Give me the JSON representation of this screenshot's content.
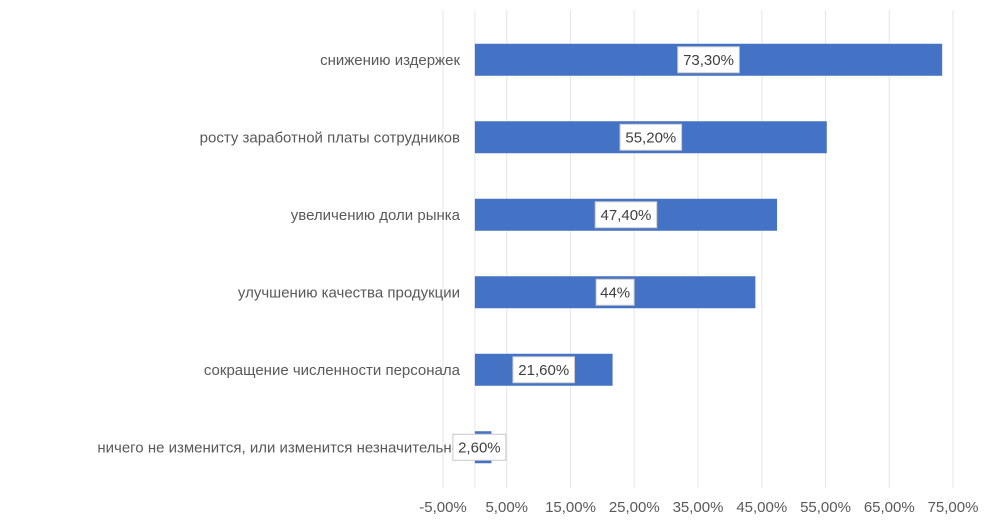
{
  "chart_data": {
    "type": "bar",
    "orientation": "horizontal",
    "categories": [
      "снижению издержек",
      "росту заработной платы сотрудников",
      "увеличению доли рынка",
      "улучшению качества продукции",
      "сокращение численности персонала",
      "ничего не изменится, или изменится незначительно"
    ],
    "values": [
      73.3,
      55.2,
      47.4,
      44,
      21.6,
      2.6
    ],
    "data_labels": [
      "73,30%",
      "55,20%",
      "47,40%",
      "44%",
      "21,60%",
      "2,60%"
    ],
    "x_ticks": [
      -5,
      5,
      15,
      25,
      35,
      45,
      55,
      65,
      75
    ],
    "x_tick_labels": [
      "-5,00%",
      "5,00%",
      "15,00%",
      "25,00%",
      "35,00%",
      "45,00%",
      "55,00%",
      "65,00%",
      "75,00%"
    ],
    "xlim": [
      -5,
      78
    ],
    "title": "",
    "xlabel": "",
    "ylabel": "",
    "grid": "vertical",
    "legend": "none",
    "bar_color": "#4472c4",
    "grid_color": "#e6e6e6",
    "label_color": "#595959"
  }
}
